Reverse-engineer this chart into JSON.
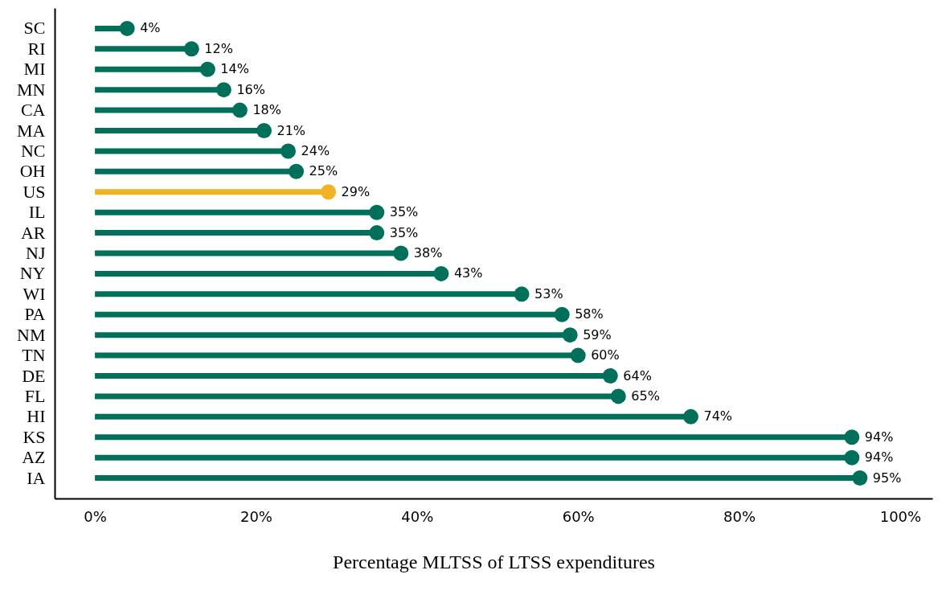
{
  "chart_data": {
    "type": "lollipop",
    "orientation": "horizontal",
    "xlabel": "Percentage MLTSS of LTSS expenditures",
    "categories": [
      "SC",
      "RI",
      "MI",
      "MN",
      "CA",
      "MA",
      "NC",
      "OH",
      "US",
      "IL",
      "AR",
      "NJ",
      "NY",
      "WI",
      "PA",
      "NM",
      "TN",
      "DE",
      "FL",
      "HI",
      "KS",
      "AZ",
      "IA"
    ],
    "values": [
      4,
      12,
      14,
      16,
      18,
      21,
      24,
      25,
      29,
      35,
      35,
      38,
      43,
      53,
      58,
      59,
      60,
      64,
      65,
      74,
      94,
      94,
      95
    ],
    "value_labels": [
      "4%",
      "12%",
      "14%",
      "16%",
      "18%",
      "21%",
      "24%",
      "25%",
      "29%",
      "35%",
      "35%",
      "38%",
      "43%",
      "53%",
      "58%",
      "59%",
      "60%",
      "64%",
      "65%",
      "74%",
      "94%",
      "94%",
      "95%"
    ],
    "colors": [
      "#00705a",
      "#00705a",
      "#00705a",
      "#00705a",
      "#00705a",
      "#00705a",
      "#00705a",
      "#00705a",
      "#f0b323",
      "#00705a",
      "#00705a",
      "#00705a",
      "#00705a",
      "#00705a",
      "#00705a",
      "#00705a",
      "#00705a",
      "#00705a",
      "#00705a",
      "#00705a",
      "#00705a",
      "#00705a",
      "#00705a"
    ],
    "xlim": [
      -5,
      104
    ],
    "xticks": [
      {
        "value": 0,
        "label": "0%"
      },
      {
        "value": 20,
        "label": "20%"
      },
      {
        "value": 40,
        "label": "40%"
      },
      {
        "value": 60,
        "label": "60%"
      },
      {
        "value": 80,
        "label": "80%"
      },
      {
        "value": 100,
        "label": "100%"
      }
    ],
    "marker": "circle",
    "grid": false
  }
}
